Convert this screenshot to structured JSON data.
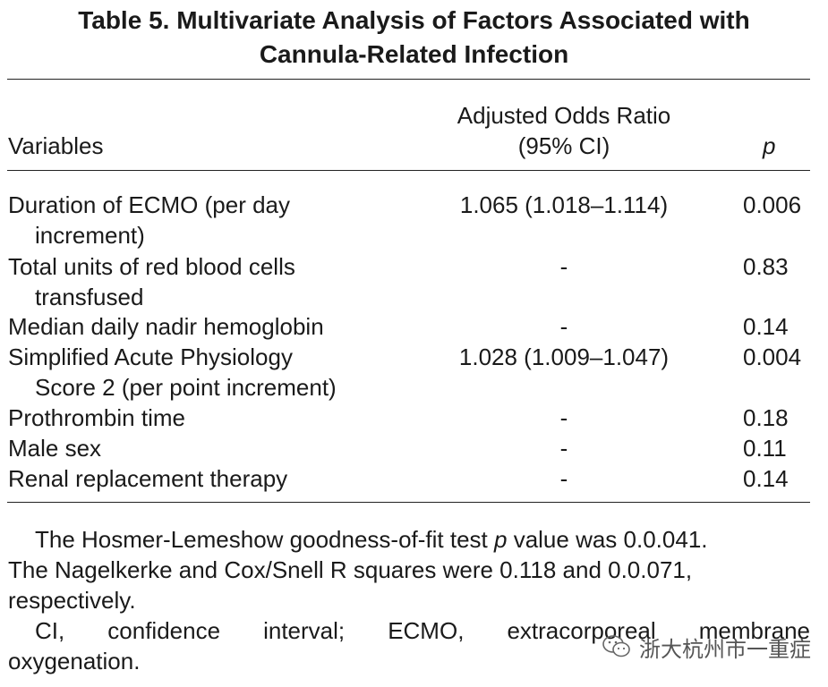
{
  "title": {
    "line1": "Table 5.  Multivariate Analysis of Factors Associated with",
    "line2": "Cannula-Related Infection"
  },
  "columns": {
    "variables": "Variables",
    "or_line1": "Adjusted Odds Ratio",
    "or_line2": "(95% CI)",
    "p": "p"
  },
  "rows": [
    {
      "v1": "Duration of ECMO (per day",
      "v2": "increment)",
      "or": "1.065 (1.018–1.114)",
      "p": "0.006"
    },
    {
      "v1": "Total units of red blood cells",
      "v2": "transfused",
      "or": "-",
      "p": "0.83"
    },
    {
      "v1": "Median daily nadir hemoglobin",
      "v2": "",
      "or": "-",
      "p": "0.14"
    },
    {
      "v1": "Simplified Acute Physiology",
      "v2": "Score 2 (per point increment)",
      "or": "1.028 (1.009–1.047)",
      "p": "0.004"
    },
    {
      "v1": "Prothrombin time",
      "v2": "",
      "or": "-",
      "p": "0.18"
    },
    {
      "v1": "Male sex",
      "v2": "",
      "or": "-",
      "p": "0.11"
    },
    {
      "v1": "Renal replacement therapy",
      "v2": "",
      "or": "-",
      "p": "0.14"
    }
  ],
  "footnotes": {
    "f1_a": "The Hosmer-Lemeshow goodness-of-fit test ",
    "f1_p": "p",
    "f1_b": " value was 0.0.041.",
    "f2": "The Nagelkerke and Cox/Snell R squares were 0.118 and 0.0.071,",
    "f3": "respectively.",
    "f4_words": [
      "CI,",
      "confidence",
      "interval;",
      "ECMO,",
      "extracorporeal",
      "membrane"
    ],
    "f5": "oxygenation."
  },
  "watermark": {
    "icon": "wechat-icon",
    "text": "浙大杭州市一重症"
  }
}
